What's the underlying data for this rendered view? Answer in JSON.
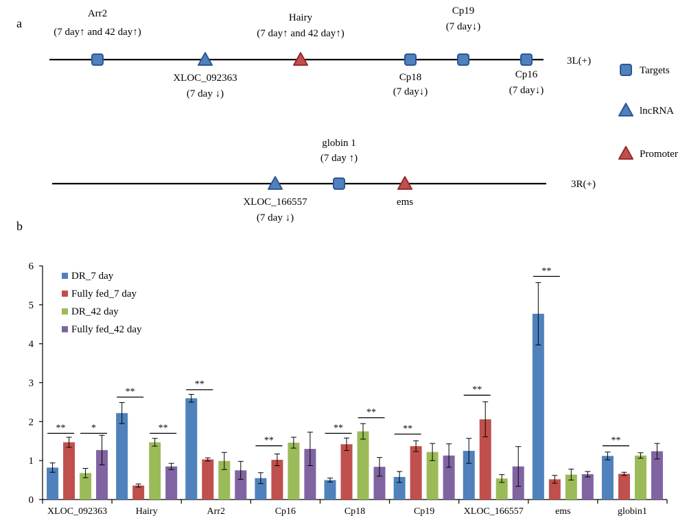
{
  "panel_a": {
    "label": "a",
    "tracks": [
      {
        "name": "3L(+)",
        "features": [
          {
            "kind": "target",
            "name": "Arr2",
            "note": "(7 day↑ and 42 day↑)"
          },
          {
            "kind": "lncrna",
            "name": "XLOC_092363",
            "note": "(7 day ↓)"
          },
          {
            "kind": "promoter",
            "name": "Hairy",
            "note": "(7 day↑ and 42 day↑)"
          },
          {
            "kind": "target",
            "name": "Cp18",
            "note": "(7 day↓)"
          },
          {
            "kind": "target",
            "name": "Cp19",
            "note": "(7 day↓)"
          },
          {
            "kind": "target",
            "name": "Cp16",
            "note": "(7 day↓)"
          }
        ]
      },
      {
        "name": "3R(+)",
        "features": [
          {
            "kind": "lncrna",
            "name": "XLOC_166557",
            "note": "(7 day ↓)"
          },
          {
            "kind": "target",
            "name": "globin 1",
            "note": "(7 day ↑)"
          },
          {
            "kind": "promoter",
            "name": "ems",
            "note": ""
          }
        ]
      }
    ],
    "legend": [
      {
        "kind": "target",
        "label": "Targets"
      },
      {
        "kind": "lncrna",
        "label": "lncRNA"
      },
      {
        "kind": "promoter",
        "label": "Promoter"
      }
    ]
  },
  "panel_b": {
    "label": "b"
  },
  "colors": {
    "target_fill": "#4f81bd",
    "target_stroke": "#2f5597",
    "promoter_fill": "#c0504d",
    "promoter_stroke": "#9a2a2a",
    "dr7": "#4f81bd",
    "ff7": "#c0504d",
    "dr42": "#9bbb59",
    "ff42": "#8064a2"
  },
  "chart_data": {
    "type": "bar",
    "title": "",
    "xlabel": "",
    "ylabel": "",
    "ylim": [
      0,
      6
    ],
    "yticks": [
      0,
      1,
      2,
      3,
      4,
      5,
      6
    ],
    "legend_position": "top-left",
    "categories": [
      "XLOC_092363",
      "Hairy",
      "Arr2",
      "Cp16",
      "Cp18",
      "Cp19",
      "XLOC_166557",
      "ems",
      "globin1"
    ],
    "series": [
      {
        "name": "DR_7 day",
        "color": "#4f81bd",
        "values": [
          0.82,
          2.22,
          2.6,
          0.55,
          0.5,
          0.58,
          1.25,
          4.77,
          1.12
        ],
        "errors": [
          0.12,
          0.27,
          0.1,
          0.14,
          0.05,
          0.14,
          0.32,
          0.8,
          0.1
        ]
      },
      {
        "name": "Fully fed_7 day",
        "color": "#c0504d",
        "values": [
          1.47,
          0.36,
          1.03,
          1.02,
          1.42,
          1.37,
          2.06,
          0.52,
          0.66
        ],
        "errors": [
          0.13,
          0.04,
          0.04,
          0.15,
          0.16,
          0.14,
          0.45,
          0.1,
          0.04
        ]
      },
      {
        "name": "DR_42 day",
        "color": "#9bbb59",
        "values": [
          0.68,
          1.47,
          0.99,
          1.46,
          1.75,
          1.22,
          0.54,
          0.64,
          1.13
        ],
        "errors": [
          0.12,
          0.1,
          0.22,
          0.14,
          0.2,
          0.22,
          0.1,
          0.14,
          0.07
        ]
      },
      {
        "name": "Fully fed_42 day",
        "color": "#8064a2",
        "values": [
          1.27,
          0.85,
          0.75,
          1.3,
          0.84,
          1.13,
          0.85,
          0.65,
          1.24
        ],
        "errors": [
          0.38,
          0.08,
          0.23,
          0.43,
          0.24,
          0.3,
          0.51,
          0.07,
          0.2
        ]
      }
    ],
    "significance": [
      {
        "category": "XLOC_092363",
        "from": 0,
        "to": 1,
        "label": "**",
        "level": 1.7
      },
      {
        "category": "XLOC_092363",
        "from": 2,
        "to": 3,
        "label": "*",
        "level": 1.7
      },
      {
        "category": "Hairy",
        "from": 0,
        "to": 1,
        "label": "**",
        "level": 2.63
      },
      {
        "category": "Hairy",
        "from": 2,
        "to": 3,
        "label": "**",
        "level": 1.7
      },
      {
        "category": "Arr2",
        "from": 0,
        "to": 1,
        "label": "**",
        "level": 2.82
      },
      {
        "category": "Cp16",
        "from": 0,
        "to": 1,
        "label": "**",
        "level": 1.38
      },
      {
        "category": "Cp18",
        "from": 0,
        "to": 1,
        "label": "**",
        "level": 1.7
      },
      {
        "category": "Cp18",
        "from": 2,
        "to": 3,
        "label": "**",
        "level": 2.1
      },
      {
        "category": "Cp19",
        "from": 0,
        "to": 1,
        "label": "**",
        "level": 1.68
      },
      {
        "category": "XLOC_166557",
        "from": 0,
        "to": 1,
        "label": "**",
        "level": 2.68
      },
      {
        "category": "ems",
        "from": 0,
        "to": 1,
        "label": "**",
        "level": 5.73
      },
      {
        "category": "globin1",
        "from": 0,
        "to": 1,
        "label": "**",
        "level": 1.38
      }
    ]
  }
}
